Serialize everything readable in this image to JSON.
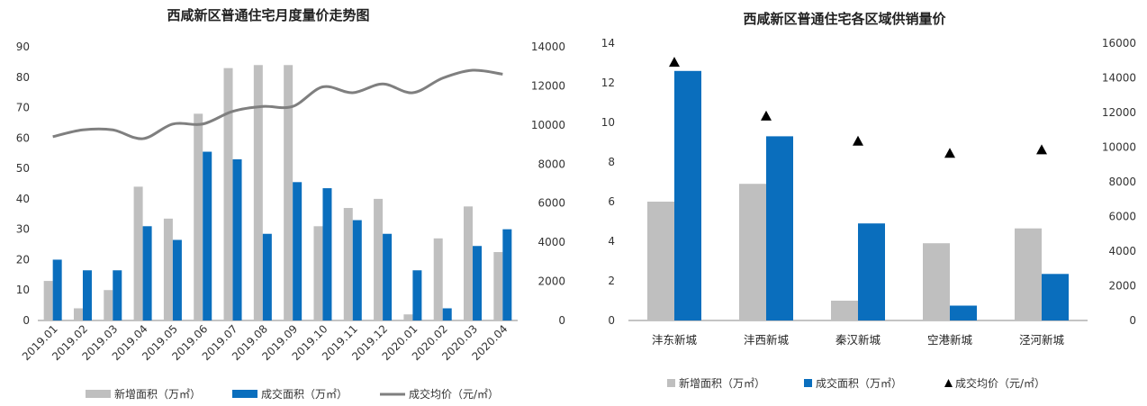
{
  "chart_data": [
    {
      "type": "bar",
      "title": "西咸新区普通住宅月度量价走势图",
      "categories": [
        "2019.01",
        "2019.02",
        "2019.03",
        "2019.04",
        "2019.05",
        "2019.06",
        "2019.07",
        "2019.08",
        "2019.09",
        "2019.10",
        "2019.11",
        "2019.12",
        "2020.01",
        "2020.02",
        "2020.03",
        "2020.04"
      ],
      "y_left_ticks": [
        "0",
        "10",
        "20",
        "30",
        "40",
        "50",
        "60",
        "70",
        "80",
        "90"
      ],
      "y_right_ticks": [
        "0",
        "2000",
        "4000",
        "6000",
        "8000",
        "10000",
        "12000",
        "14000"
      ],
      "ylim_left": [
        0,
        90
      ],
      "ylim_right": [
        0,
        14000
      ],
      "grid": false,
      "legend_position": "bottom",
      "series": [
        {
          "name": "新增面积（万㎡）",
          "type": "bar",
          "axis": "left",
          "color": "#bfbfbf",
          "values": [
            13,
            4,
            10,
            44,
            33.5,
            68,
            83,
            84,
            84,
            31,
            37,
            40,
            2,
            27,
            37.5,
            22.5
          ]
        },
        {
          "name": "成交面积（万㎡）",
          "type": "bar",
          "axis": "left",
          "color": "#0a6ebd",
          "values": [
            20,
            16.5,
            16.5,
            31,
            26.5,
            55.5,
            53,
            28.5,
            45.5,
            43.5,
            33,
            28.5,
            16.5,
            4,
            24.5,
            30
          ]
        },
        {
          "name": "成交均价（元/㎡）",
          "type": "line",
          "axis": "right",
          "color": "#7f7f7f",
          "values": [
            9400,
            9750,
            9750,
            9300,
            10050,
            10050,
            10700,
            10950,
            10950,
            11950,
            11650,
            12100,
            11650,
            12400,
            12800,
            12600
          ]
        }
      ]
    },
    {
      "type": "bar",
      "title": "西咸新区普通住宅各区域供销量价",
      "categories": [
        "沣东新城",
        "沣西新城",
        "秦汉新城",
        "空港新城",
        "泾河新城"
      ],
      "y_left_ticks": [
        "0",
        "2",
        "4",
        "6",
        "8",
        "10",
        "12",
        "14"
      ],
      "y_right_ticks": [
        "0",
        "2000",
        "4000",
        "6000",
        "8000",
        "10000",
        "12000",
        "14000",
        "16000"
      ],
      "ylim_left": [
        0,
        14
      ],
      "ylim_right": [
        0,
        16000
      ],
      "grid": false,
      "legend_position": "bottom",
      "series": [
        {
          "name": "新增面积（万㎡）",
          "type": "bar",
          "axis": "left",
          "color": "#bfbfbf",
          "values": [
            6,
            6.9,
            1,
            3.9,
            4.65
          ]
        },
        {
          "name": "成交面积（万㎡）",
          "type": "bar",
          "axis": "left",
          "color": "#0a6ebd",
          "values": [
            12.6,
            9.3,
            4.9,
            0.75,
            2.35
          ]
        },
        {
          "name": "成交均价（元/㎡）",
          "type": "scatter",
          "marker": "triangle",
          "axis": "right",
          "color": "#000000",
          "values": [
            14900,
            11800,
            10350,
            9650,
            9850
          ]
        }
      ]
    }
  ]
}
